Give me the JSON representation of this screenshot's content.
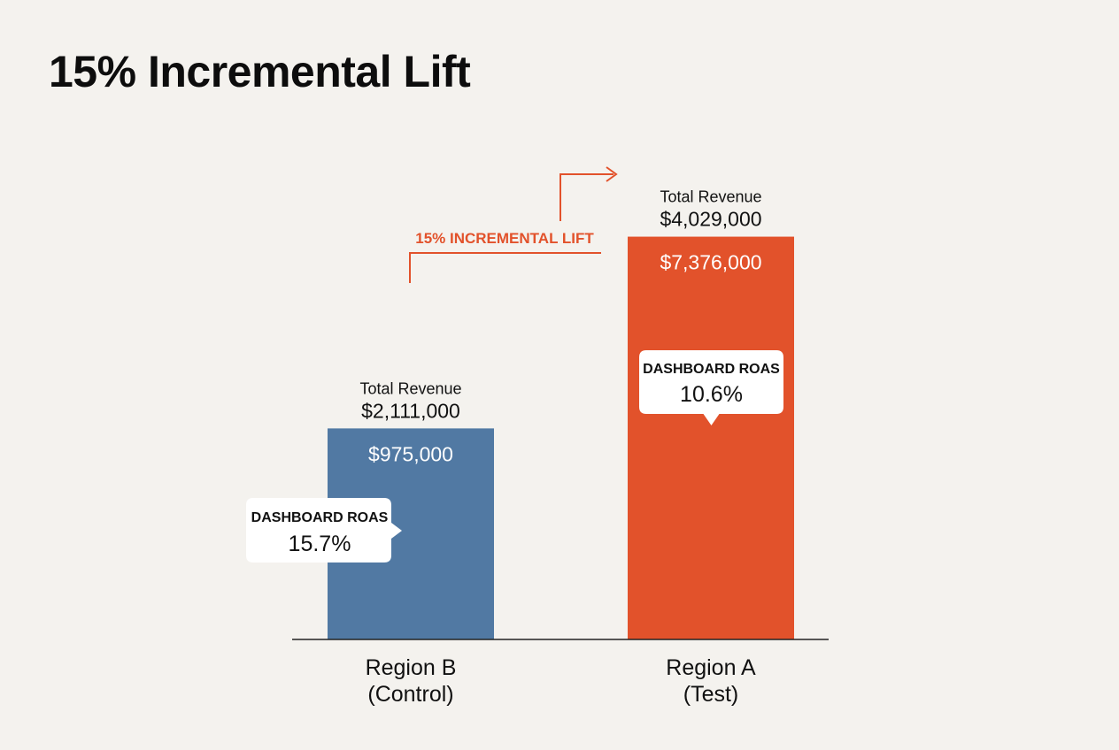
{
  "title": "15% Incremental Lift",
  "colors": {
    "background": "#f4f2ee",
    "control_bar": "#5179a3",
    "test_bar": "#e2522b",
    "lift_annotation": "#e2522b",
    "text": "#111111",
    "axis": "#222222",
    "callout_bg": "#ffffff"
  },
  "chart_data": {
    "type": "bar",
    "title": "15% Incremental Lift",
    "categories": [
      "Region B\n(Control)",
      "Region A\n(Test)"
    ],
    "category_lines": [
      [
        "Region B",
        "(Control)"
      ],
      [
        "Region A",
        "(Test)"
      ]
    ],
    "values": [
      2111000,
      4029000
    ],
    "total_label": "Total Revenue",
    "total_value_labels": [
      "$2,111,000",
      "$4,029,000"
    ],
    "inner_value_labels": [
      "$975,000",
      "$7,376,000"
    ],
    "callouts": [
      {
        "label": "DASHBOARD ROAS",
        "value": "15.7%",
        "pointer": "right"
      },
      {
        "label": "DASHBOARD ROAS",
        "value": "10.6%",
        "pointer": "down"
      }
    ],
    "annotation": "15% INCREMENTAL LIFT",
    "xlabel": "",
    "ylabel": "",
    "ylim": [
      0,
      5600000
    ],
    "grid": false,
    "legend": "none"
  }
}
